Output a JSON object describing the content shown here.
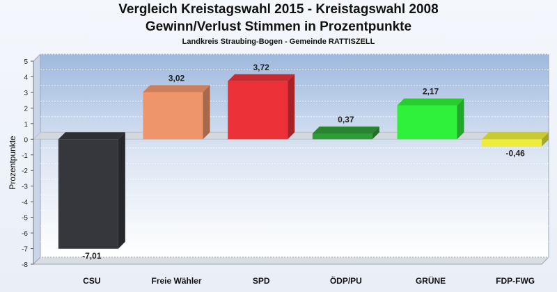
{
  "title": "Vergleich Kreistagswahl 2015 - Kreistagswahl 2008",
  "subtitle_main": "Gewinn/Verlust Stimmen in Prozentpunkte",
  "subtitle_region": "Landkreis Straubing-Bogen - Gemeinde RATTISZELL",
  "chart_data": {
    "type": "bar",
    "title": "Vergleich Kreistagswahl 2015 - Kreistagswahl 2008",
    "subtitle": "Gewinn/Verlust Stimmen in Prozentpunkte",
    "xlabel": "",
    "ylabel": "Prozentpunkte",
    "ylim": [
      -8,
      5
    ],
    "yticks": [
      5,
      4,
      3,
      2,
      1,
      0,
      -1,
      -2,
      -3,
      -4,
      -5,
      -6,
      -7,
      -8
    ],
    "ytick_labels": [
      "5",
      "4",
      "3",
      "2",
      "1",
      "0",
      "-1",
      "-2",
      "-3",
      "-4",
      "-5",
      "-6",
      "-7",
      "-8"
    ],
    "grid": true,
    "categories": [
      "CSU",
      "Freie Wähler",
      "SPD",
      "ÖDP/PU",
      "GRÜNE",
      "FDP-FWG"
    ],
    "values": [
      -7.01,
      3.02,
      3.72,
      0.37,
      2.17,
      -0.46
    ],
    "value_labels": [
      "-7,01",
      "3,02",
      "3,72",
      "0,37",
      "2,17",
      "-0,46"
    ],
    "colors": [
      "#35373d",
      "#ef956b",
      "#eb3137",
      "#2f9b3a",
      "#2ff03a",
      "#eded3a"
    ]
  }
}
